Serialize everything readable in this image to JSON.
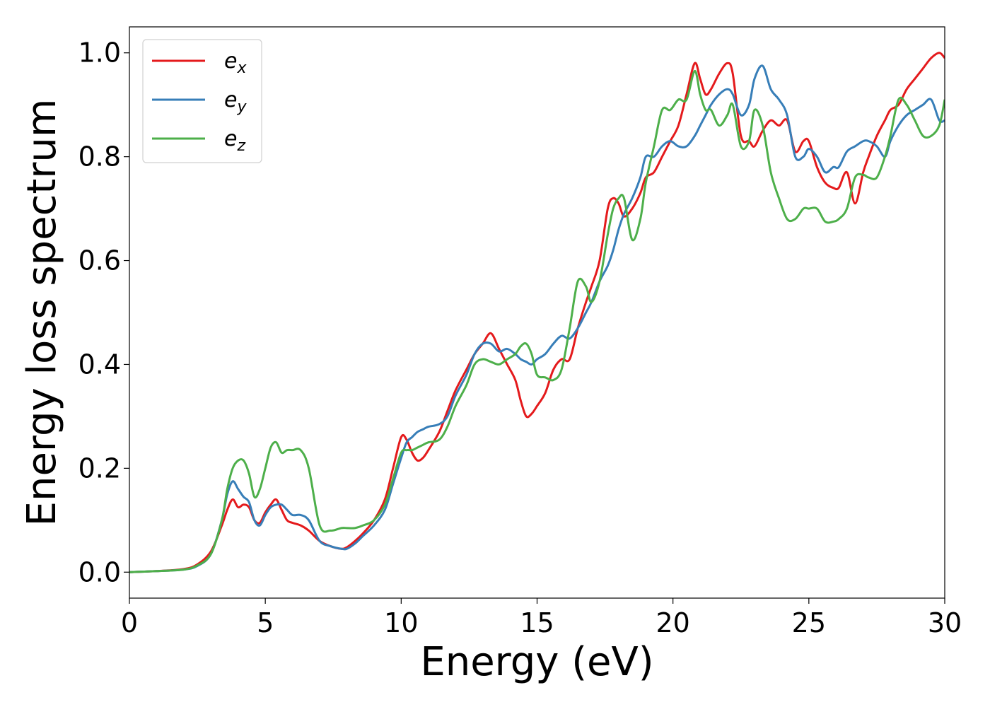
{
  "chart_data": {
    "type": "line",
    "title": "",
    "xlabel": "Energy (eV)",
    "ylabel": "Energy loss spectrum",
    "xlim": [
      0,
      30
    ],
    "ylim": [
      -0.05,
      1.05
    ],
    "xticks": [
      0,
      5,
      10,
      15,
      20,
      25,
      30
    ],
    "xtick_labels": [
      "0",
      "5",
      "10",
      "15",
      "20",
      "25",
      "30"
    ],
    "yticks": [
      0.0,
      0.2,
      0.4,
      0.6,
      0.8,
      1.0
    ],
    "ytick_labels": [
      "0.0",
      "0.2",
      "0.4",
      "0.6",
      "0.8",
      "1.0"
    ],
    "grid": false,
    "legend_position": "top-left",
    "series": [
      {
        "name": "e",
        "subscript": "x",
        "color": "#e41a1c",
        "x": [
          0,
          1,
          2,
          2.5,
          3,
          3.4,
          3.6,
          3.8,
          4.0,
          4.2,
          4.4,
          4.6,
          4.8,
          5.0,
          5.2,
          5.4,
          5.6,
          5.8,
          6.0,
          6.3,
          6.6,
          7.0,
          7.4,
          7.8,
          8.0,
          8.3,
          8.6,
          9.0,
          9.4,
          9.7,
          10.0,
          10.2,
          10.4,
          10.6,
          10.8,
          11.0,
          11.4,
          11.7,
          12.0,
          12.4,
          12.7,
          13.0,
          13.3,
          13.6,
          13.9,
          14.2,
          14.4,
          14.6,
          14.8,
          15.0,
          15.3,
          15.6,
          15.9,
          16.2,
          16.5,
          16.8,
          17.0,
          17.3,
          17.6,
          17.8,
          18.0,
          18.2,
          18.5,
          18.8,
          19.0,
          19.3,
          19.6,
          19.9,
          20.2,
          20.5,
          20.8,
          21.0,
          21.2,
          21.4,
          21.7,
          22.0,
          22.2,
          22.5,
          22.8,
          23.0,
          23.3,
          23.6,
          23.9,
          24.2,
          24.5,
          24.8,
          25.0,
          25.3,
          25.6,
          25.9,
          26.1,
          26.4,
          26.7,
          27.0,
          27.2,
          27.5,
          27.8,
          28.0,
          28.3,
          28.6,
          28.9,
          29.2,
          29.5,
          29.8,
          30.0
        ],
        "y": [
          0,
          0.002,
          0.006,
          0.015,
          0.04,
          0.09,
          0.12,
          0.14,
          0.125,
          0.13,
          0.125,
          0.1,
          0.095,
          0.115,
          0.13,
          0.14,
          0.12,
          0.1,
          0.095,
          0.09,
          0.08,
          0.06,
          0.05,
          0.045,
          0.048,
          0.06,
          0.075,
          0.1,
          0.14,
          0.2,
          0.26,
          0.255,
          0.23,
          0.215,
          0.22,
          0.235,
          0.27,
          0.31,
          0.35,
          0.39,
          0.42,
          0.44,
          0.46,
          0.43,
          0.4,
          0.37,
          0.33,
          0.3,
          0.305,
          0.32,
          0.345,
          0.39,
          0.41,
          0.41,
          0.47,
          0.52,
          0.55,
          0.6,
          0.7,
          0.72,
          0.71,
          0.685,
          0.7,
          0.73,
          0.76,
          0.77,
          0.8,
          0.83,
          0.86,
          0.92,
          0.98,
          0.95,
          0.92,
          0.93,
          0.96,
          0.98,
          0.96,
          0.84,
          0.83,
          0.82,
          0.85,
          0.87,
          0.86,
          0.87,
          0.81,
          0.83,
          0.83,
          0.78,
          0.75,
          0.74,
          0.74,
          0.77,
          0.71,
          0.77,
          0.8,
          0.84,
          0.87,
          0.89,
          0.9,
          0.93,
          0.95,
          0.97,
          0.99,
          1.0,
          0.99
        ]
      },
      {
        "name": "e",
        "subscript": "y",
        "color": "#377eb8",
        "x": [
          0,
          1,
          2,
          2.5,
          3,
          3.4,
          3.6,
          3.8,
          4.0,
          4.2,
          4.4,
          4.6,
          4.8,
          5.0,
          5.2,
          5.4,
          5.6,
          5.8,
          6.0,
          6.3,
          6.6,
          7.0,
          7.4,
          7.8,
          8.0,
          8.3,
          8.6,
          9.0,
          9.4,
          9.7,
          10.0,
          10.2,
          10.4,
          10.6,
          10.8,
          11.0,
          11.4,
          11.7,
          12.0,
          12.4,
          12.7,
          13.0,
          13.3,
          13.6,
          13.9,
          14.2,
          14.4,
          14.6,
          14.8,
          15.0,
          15.3,
          15.6,
          15.9,
          16.2,
          16.5,
          16.8,
          17.0,
          17.3,
          17.6,
          17.8,
          18.0,
          18.2,
          18.5,
          18.8,
          19.0,
          19.3,
          19.6,
          19.9,
          20.2,
          20.5,
          20.8,
          21.0,
          21.2,
          21.4,
          21.7,
          22.0,
          22.2,
          22.5,
          22.8,
          23.0,
          23.3,
          23.6,
          23.9,
          24.2,
          24.5,
          24.8,
          25.0,
          25.3,
          25.6,
          25.9,
          26.1,
          26.4,
          26.7,
          27.0,
          27.2,
          27.5,
          27.8,
          28.0,
          28.3,
          28.6,
          28.9,
          29.2,
          29.5,
          29.8,
          30.0
        ],
        "y": [
          0,
          0.002,
          0.005,
          0.012,
          0.035,
          0.1,
          0.15,
          0.175,
          0.16,
          0.145,
          0.135,
          0.1,
          0.09,
          0.11,
          0.125,
          0.13,
          0.13,
          0.12,
          0.11,
          0.11,
          0.1,
          0.06,
          0.05,
          0.045,
          0.045,
          0.055,
          0.07,
          0.09,
          0.12,
          0.17,
          0.22,
          0.25,
          0.26,
          0.27,
          0.275,
          0.28,
          0.285,
          0.3,
          0.34,
          0.38,
          0.42,
          0.44,
          0.44,
          0.425,
          0.43,
          0.42,
          0.41,
          0.405,
          0.4,
          0.41,
          0.42,
          0.44,
          0.455,
          0.45,
          0.47,
          0.5,
          0.52,
          0.56,
          0.59,
          0.62,
          0.66,
          0.69,
          0.72,
          0.76,
          0.8,
          0.8,
          0.82,
          0.83,
          0.82,
          0.82,
          0.84,
          0.86,
          0.88,
          0.9,
          0.92,
          0.93,
          0.92,
          0.88,
          0.9,
          0.95,
          0.975,
          0.93,
          0.91,
          0.88,
          0.8,
          0.8,
          0.815,
          0.8,
          0.77,
          0.78,
          0.78,
          0.81,
          0.82,
          0.83,
          0.83,
          0.82,
          0.8,
          0.83,
          0.86,
          0.88,
          0.89,
          0.9,
          0.91,
          0.87,
          0.87
        ]
      },
      {
        "name": "e",
        "subscript": "z",
        "color": "#4daf4a",
        "x": [
          0,
          1,
          2,
          2.5,
          3,
          3.4,
          3.6,
          3.8,
          4.0,
          4.2,
          4.4,
          4.6,
          4.8,
          5.0,
          5.2,
          5.4,
          5.6,
          5.8,
          6.0,
          6.3,
          6.6,
          7.0,
          7.4,
          7.8,
          8.0,
          8.3,
          8.6,
          9.0,
          9.4,
          9.7,
          10.0,
          10.2,
          10.4,
          10.6,
          10.8,
          11.0,
          11.4,
          11.7,
          12.0,
          12.4,
          12.7,
          13.0,
          13.3,
          13.6,
          13.9,
          14.2,
          14.4,
          14.6,
          14.8,
          15.0,
          15.3,
          15.6,
          15.9,
          16.2,
          16.5,
          16.8,
          17.0,
          17.3,
          17.6,
          17.8,
          18.0,
          18.2,
          18.5,
          18.8,
          19.0,
          19.3,
          19.6,
          19.9,
          20.2,
          20.5,
          20.8,
          21.0,
          21.2,
          21.4,
          21.7,
          22.0,
          22.2,
          22.5,
          22.8,
          23.0,
          23.3,
          23.6,
          23.9,
          24.2,
          24.5,
          24.8,
          25.0,
          25.3,
          25.6,
          25.9,
          26.1,
          26.4,
          26.7,
          27.0,
          27.2,
          27.5,
          27.8,
          28.0,
          28.3,
          28.6,
          28.9,
          29.2,
          29.5,
          29.8,
          30.0
        ],
        "y": [
          0,
          0.002,
          0.005,
          0.013,
          0.035,
          0.1,
          0.16,
          0.2,
          0.215,
          0.215,
          0.19,
          0.145,
          0.16,
          0.2,
          0.24,
          0.25,
          0.23,
          0.235,
          0.235,
          0.235,
          0.2,
          0.09,
          0.08,
          0.085,
          0.085,
          0.085,
          0.09,
          0.1,
          0.13,
          0.18,
          0.23,
          0.235,
          0.235,
          0.24,
          0.245,
          0.25,
          0.255,
          0.28,
          0.32,
          0.36,
          0.4,
          0.41,
          0.405,
          0.4,
          0.41,
          0.42,
          0.435,
          0.44,
          0.42,
          0.38,
          0.375,
          0.37,
          0.39,
          0.47,
          0.56,
          0.55,
          0.52,
          0.56,
          0.65,
          0.7,
          0.72,
          0.72,
          0.64,
          0.68,
          0.75,
          0.82,
          0.89,
          0.89,
          0.91,
          0.91,
          0.965,
          0.92,
          0.89,
          0.89,
          0.86,
          0.88,
          0.9,
          0.82,
          0.83,
          0.89,
          0.86,
          0.77,
          0.72,
          0.68,
          0.68,
          0.7,
          0.7,
          0.7,
          0.675,
          0.675,
          0.68,
          0.7,
          0.76,
          0.765,
          0.76,
          0.76,
          0.8,
          0.84,
          0.91,
          0.9,
          0.87,
          0.84,
          0.84,
          0.86,
          0.91
        ]
      }
    ]
  }
}
